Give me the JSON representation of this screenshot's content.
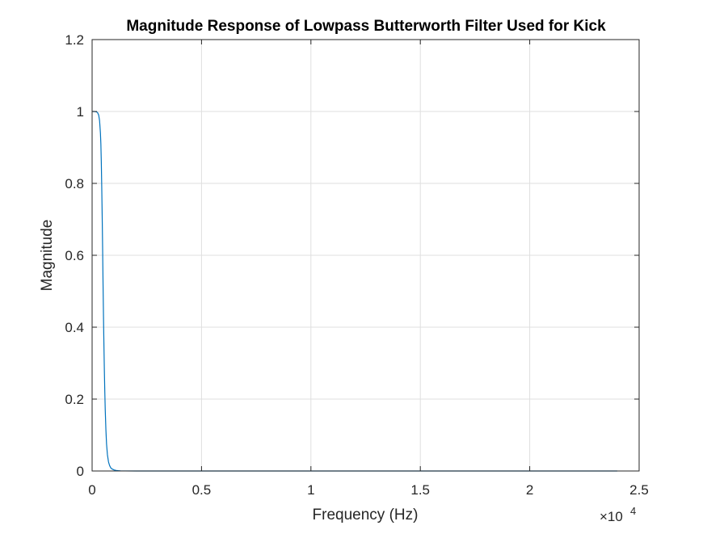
{
  "chart_data": {
    "type": "line",
    "title": "Magnitude Response of Lowpass Butterworth Filter Used for Kick",
    "xlabel": "Frequency (Hz)",
    "ylabel": "Magnitude",
    "x_exponent_label": "×10",
    "x_exponent_power": "4",
    "xlim": [
      0,
      25000
    ],
    "ylim": [
      0,
      1.2
    ],
    "grid": true,
    "x_ticks": [
      0,
      5000,
      10000,
      15000,
      20000,
      25000
    ],
    "x_tick_labels": [
      "0",
      "0.5",
      "1",
      "1.5",
      "2",
      "2.5"
    ],
    "y_ticks": [
      0,
      0.2,
      0.4,
      0.6,
      0.8,
      1,
      1.2
    ],
    "y_tick_labels": [
      "0",
      "0.2",
      "0.4",
      "0.6",
      "0.8",
      "1",
      "1.2"
    ],
    "series": [
      {
        "color": "#0072bd",
        "x": [
          0,
          100,
          200,
          250,
          300,
          340,
          380,
          400,
          420,
          440,
          460,
          480,
          500,
          520,
          540,
          560,
          580,
          600,
          630,
          660,
          700,
          750,
          800,
          850,
          900,
          1000,
          1100,
          1200,
          1300,
          1500,
          2000,
          3000,
          5000,
          10000,
          15000,
          20000,
          24000
        ],
        "y": [
          1,
          1,
          0.999,
          0.997,
          0.99,
          0.975,
          0.94,
          0.91,
          0.86,
          0.79,
          0.71,
          0.62,
          0.52,
          0.43,
          0.35,
          0.28,
          0.22,
          0.17,
          0.115,
          0.075,
          0.045,
          0.025,
          0.015,
          0.009,
          0.006,
          0.003,
          0.0015,
          0.0008,
          0.0004,
          0.0001,
          0,
          0,
          0,
          0,
          0,
          0,
          0
        ]
      }
    ]
  }
}
